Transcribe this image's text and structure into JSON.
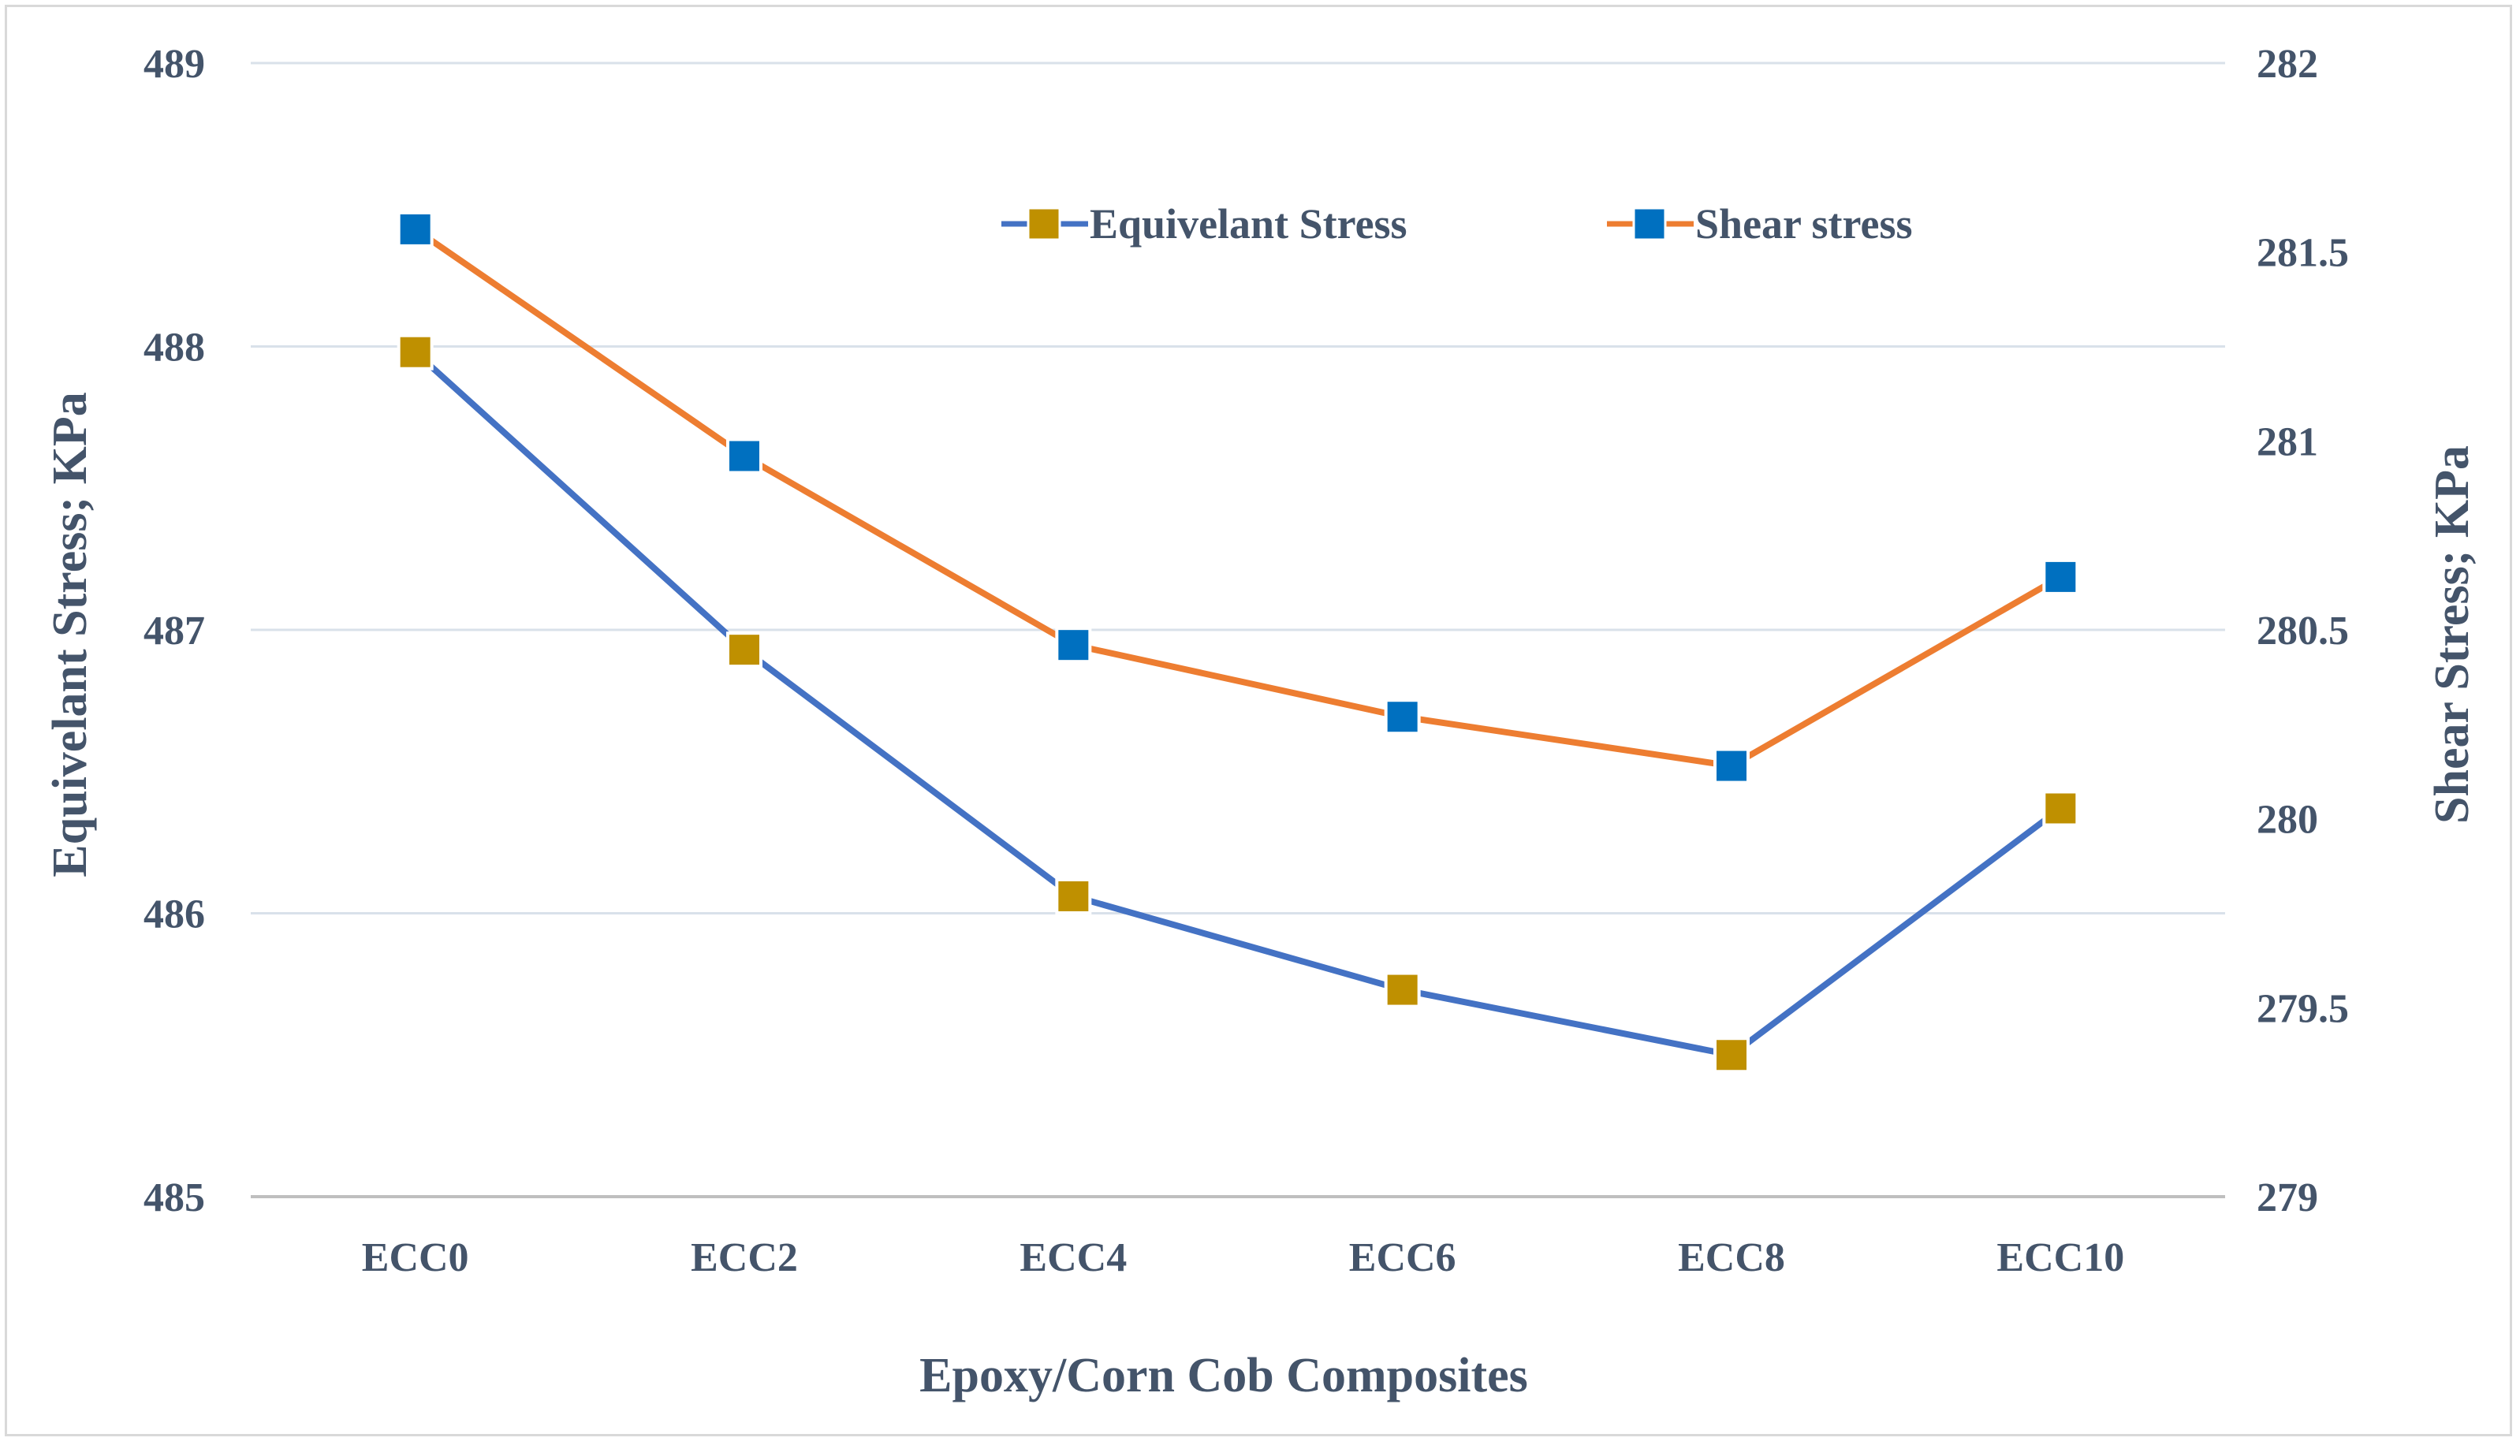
{
  "chart_data": {
    "type": "line",
    "title": "",
    "xlabel": "Epoxy/Corn Cob Composites",
    "ylabel": "Equivelant Stress; KPa",
    "y2label": "Shear Stress; KPa",
    "categories": [
      "ECC0",
      "ECC2",
      "ECC4",
      "ECC6",
      "ECC8",
      "ECC10"
    ],
    "ylim": [
      485,
      489
    ],
    "yticks": [
      "485",
      "486",
      "487",
      "488",
      "489"
    ],
    "y2lim": [
      279,
      282
    ],
    "y2ticks": [
      "279",
      "279.5",
      "280",
      "280.5",
      "281",
      "281.5",
      "282"
    ],
    "grid": true,
    "legend_position": "top-right",
    "series": [
      {
        "name": "Equivelant Stress",
        "axis": "left",
        "line_color": "#4472c4",
        "marker_color": "#bf9000",
        "values": [
          487.98,
          486.93,
          486.06,
          485.73,
          485.5,
          486.37
        ]
      },
      {
        "name": "Shear stress",
        "axis": "right",
        "line_color": "#ed7d31",
        "marker_color": "#0070c0",
        "values": [
          281.56,
          280.96,
          280.46,
          280.27,
          280.14,
          280.64
        ]
      }
    ]
  }
}
